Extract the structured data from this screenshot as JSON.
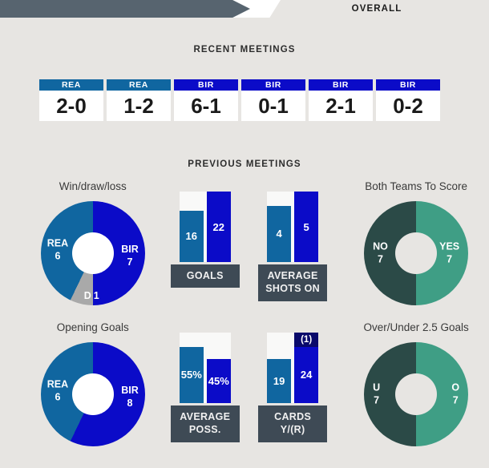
{
  "header": {
    "tab_label": "OVERALL"
  },
  "sections": {
    "recent": "RECENT MEETINGS",
    "previous": "PREVIOUS MEETINGS"
  },
  "palette": {
    "rea_blue": "#1066a0",
    "bir_blue": "#0b0bc8",
    "red_card_navy": "#0a0a6b",
    "draw_gray": "#a9a9a9",
    "green": "#3f9e85",
    "dark_teal": "#2b4a47",
    "slate": "#57646f",
    "label_box_slate": "#3e4a55",
    "page_bg": "#e7e5e2"
  },
  "recent_meetings": {
    "matches": [
      {
        "team": "REA",
        "score": "2-0",
        "color": "#1066a0"
      },
      {
        "team": "REA",
        "score": "1-2",
        "color": "#1066a0"
      },
      {
        "team": "BIR",
        "score": "6-1",
        "color": "#0b0bc8"
      },
      {
        "team": "BIR",
        "score": "0-1",
        "color": "#0b0bc8"
      },
      {
        "team": "BIR",
        "score": "2-1",
        "color": "#0b0bc8"
      },
      {
        "team": "BIR",
        "score": "0-2",
        "color": "#0b0bc8"
      }
    ]
  },
  "chart_data": [
    {
      "id": "win_draw_loss",
      "type": "pie",
      "title": "Win/draw/loss",
      "total": 14,
      "hole_color": "#ffffff",
      "legend": "inside",
      "slices": [
        {
          "label": "BIR",
          "value": 7,
          "color": "#0b0bc8",
          "pos": "right"
        },
        {
          "label": "D",
          "value": 1,
          "color": "#a9a9a9",
          "pos": "bottom"
        },
        {
          "label": "REA",
          "value": 6,
          "color": "#1066a0",
          "pos": "left"
        }
      ]
    },
    {
      "id": "goals",
      "type": "bar",
      "title": "GOALS",
      "title_lines": [
        "GOALS",
        ""
      ],
      "categories": [
        "REA",
        "BIR"
      ],
      "bars": [
        {
          "team": "REA",
          "value": 16,
          "display": "16",
          "h_pct": 73,
          "color": "#1066a0"
        },
        {
          "team": "BIR",
          "value": 22,
          "display": "22",
          "h_pct": 100,
          "color": "#0b0bc8"
        }
      ]
    },
    {
      "id": "average_shots_on",
      "type": "bar",
      "title": "AVERAGE SHOTS ON",
      "title_lines": [
        "AVERAGE",
        "SHOTS ON"
      ],
      "categories": [
        "REA",
        "BIR"
      ],
      "bars": [
        {
          "team": "REA",
          "value": 4,
          "display": "4",
          "h_pct": 80,
          "color": "#1066a0"
        },
        {
          "team": "BIR",
          "value": 5,
          "display": "5",
          "h_pct": 100,
          "color": "#0b0bc8"
        }
      ]
    },
    {
      "id": "both_teams_to_score",
      "type": "pie",
      "title": "Both Teams To Score",
      "total": 14,
      "hole_color": "#e7e5e2",
      "legend": "inside",
      "slices": [
        {
          "label": "YES",
          "value": 7,
          "color": "#3f9e85",
          "pos": "right"
        },
        {
          "label": "NO",
          "value": 7,
          "color": "#2b4a47",
          "pos": "left"
        }
      ]
    },
    {
      "id": "opening_goals",
      "type": "pie",
      "title": "Opening Goals",
      "total": 14,
      "hole_color": "#ffffff",
      "legend": "inside",
      "slices": [
        {
          "label": "BIR",
          "value": 8,
          "color": "#0b0bc8",
          "pos": "right"
        },
        {
          "label": "REA",
          "value": 6,
          "color": "#1066a0",
          "pos": "left"
        }
      ]
    },
    {
      "id": "average_poss",
      "type": "bar",
      "title": "AVERAGE POSS.",
      "title_lines": [
        "AVERAGE",
        "POSS."
      ],
      "categories": [
        "REA",
        "BIR"
      ],
      "bars": [
        {
          "team": "REA",
          "value": 55,
          "display": "55%",
          "h_pct": 80,
          "color": "#1066a0"
        },
        {
          "team": "BIR",
          "value": 45,
          "display": "45%",
          "h_pct": 63,
          "color": "#0b0bc8"
        }
      ]
    },
    {
      "id": "cards_yellow_red",
      "type": "bar",
      "title": "CARDS Y/(R)",
      "title_lines": [
        "CARDS",
        "Y/(R)"
      ],
      "categories": [
        "REA",
        "BIR"
      ],
      "bars": [
        {
          "team": "REA",
          "value": 19,
          "display": "19",
          "h_pct": 62,
          "color": "#1066a0"
        },
        {
          "team": "BIR",
          "value": 24,
          "display": "24",
          "h_pct": 100,
          "color": "#0b0bc8",
          "segments": [
            {
              "name": "red",
              "value": 1,
              "display": "(1)",
              "h_pct": 20,
              "color": "#0a0a6b"
            },
            {
              "name": "yellow",
              "value": 24,
              "display": "24",
              "h_pct": 80,
              "color": "#0b0bc8"
            }
          ]
        }
      ]
    },
    {
      "id": "over_under_25_goals",
      "type": "pie",
      "title": "Over/Under 2.5 Goals",
      "total": 14,
      "hole_color": "#e7e5e2",
      "legend": "inside",
      "slices": [
        {
          "label": "O",
          "value": 7,
          "color": "#3f9e85",
          "pos": "right"
        },
        {
          "label": "U",
          "value": 7,
          "color": "#2b4a47",
          "pos": "left"
        }
      ]
    }
  ]
}
